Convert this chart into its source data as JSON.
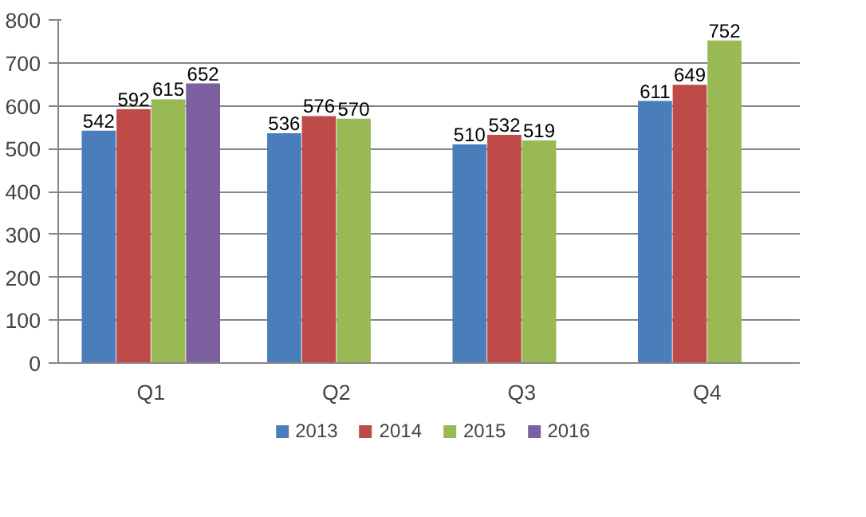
{
  "chart_data": {
    "type": "bar",
    "categories": [
      "Q1",
      "Q2",
      "Q3",
      "Q4"
    ],
    "series": [
      {
        "name": "2013",
        "color": "#4a7ebb",
        "values": [
          542,
          536,
          510,
          611
        ]
      },
      {
        "name": "2014",
        "color": "#be4b48",
        "values": [
          592,
          576,
          532,
          649
        ]
      },
      {
        "name": "2015",
        "color": "#98b954",
        "values": [
          615,
          570,
          519,
          752
        ]
      },
      {
        "name": "2016",
        "color": "#7d60a0",
        "values": [
          652,
          null,
          null,
          null
        ]
      }
    ],
    "ylim": [
      0,
      800
    ],
    "yticks": [
      0,
      100,
      200,
      300,
      400,
      500,
      600,
      700,
      800
    ],
    "grid": "y",
    "legend": "bottom",
    "data_labels": true
  }
}
